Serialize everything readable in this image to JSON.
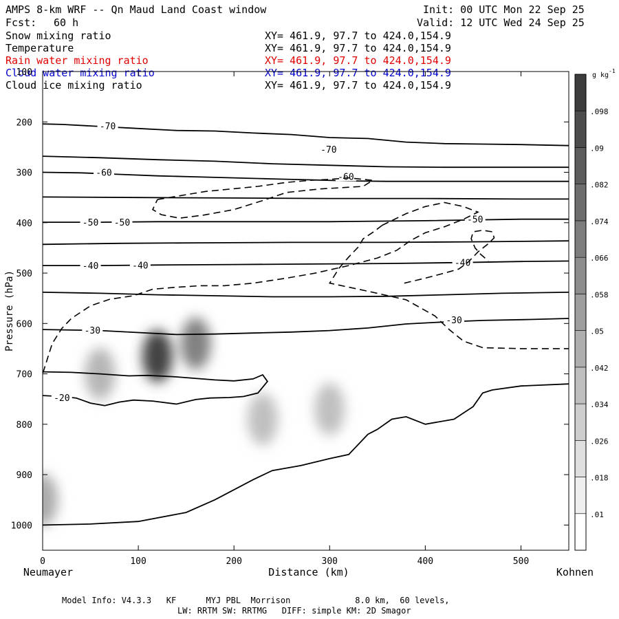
{
  "header": {
    "title": "AMPS 8-km WRF -- Qn Maud Land Coast window",
    "init": "Init: 00 UTC Mon 22 Sep 25",
    "fcst_label": "Fcst:",
    "fcst_value": "60 h",
    "valid": "Valid: 12 UTC Wed 24 Sep 25"
  },
  "fields": [
    {
      "name": "Snow mixing ratio",
      "xy": "XY= 461.9, 97.7 to 424.0,154.9",
      "color": "#000000"
    },
    {
      "name": "Temperature",
      "xy": "XY= 461.9, 97.7 to 424.0,154.9",
      "color": "#000000"
    },
    {
      "name": "Rain water mixing ratio",
      "xy": "XY= 461.9, 97.7 to 424.0,154.9",
      "color": "#e00000"
    },
    {
      "name": "Cloud water mixing ratio",
      "xy": "XY= 461.9, 97.7 to 424.0,154.9",
      "color": "#0000cc"
    },
    {
      "name": "Cloud ice mixing ratio",
      "xy": "XY= 461.9, 97.7 to 424.0,154.9",
      "color": "#000000"
    }
  ],
  "footer": {
    "line1": "Model Info: V4.3.3   KF      MYJ PBL  Morrison             8.0 km,  60 levels,",
    "line2": "LW: RRTM SW: RRTMG   DIFF: simple KM: 2D Smagor"
  },
  "chart_data": {
    "type": "cross-section",
    "xlabel": "Distance (km)",
    "ylabel": "Pressure (hPa)",
    "xlim": [
      0,
      550
    ],
    "ylim": [
      1050,
      100
    ],
    "x_ticks": [
      0,
      100,
      200,
      300,
      400,
      500
    ],
    "y_ticks": [
      100,
      200,
      300,
      400,
      500,
      600,
      700,
      800,
      900,
      1000
    ],
    "left_endpoint": "Neumayer",
    "right_endpoint": "Kohnen",
    "colorbar": {
      "unit": "g kg",
      "unit_exp": "-1",
      "levels": [
        0.01,
        0.018,
        0.026,
        0.034,
        0.042,
        0.05,
        0.058,
        0.066,
        0.074,
        0.082,
        0.09,
        0.098
      ],
      "tick_labels": [
        ".01",
        ".018",
        ".026",
        ".034",
        ".042",
        ".05",
        ".058",
        ".066",
        ".074",
        ".082",
        ".09",
        ".098"
      ]
    },
    "temperature_contours": [
      {
        "label": "-70",
        "label_positions": [
          [
            68,
            208
          ],
          [
            299,
            254
          ]
        ],
        "points": [
          [
            0,
            204
          ],
          [
            20,
            205
          ],
          [
            60,
            209
          ],
          [
            100,
            213
          ],
          [
            140,
            217
          ],
          [
            180,
            218
          ],
          [
            220,
            222
          ],
          [
            260,
            225
          ],
          [
            300,
            231
          ],
          [
            340,
            233
          ],
          [
            380,
            240
          ],
          [
            420,
            243
          ],
          [
            460,
            244
          ],
          [
            500,
            245
          ],
          [
            550,
            247
          ]
        ]
      },
      {
        "label": "",
        "label_positions": [],
        "points": [
          [
            0,
            268
          ],
          [
            60,
            271
          ],
          [
            120,
            275
          ],
          [
            180,
            278
          ],
          [
            240,
            283
          ],
          [
            300,
            286
          ],
          [
            360,
            289
          ],
          [
            420,
            290
          ],
          [
            480,
            290
          ],
          [
            550,
            290
          ]
        ]
      },
      {
        "label": "-60",
        "label_positions": [
          [
            64,
            300
          ],
          [
            317,
            308
          ]
        ],
        "points": [
          [
            0,
            300
          ],
          [
            40,
            301
          ],
          [
            80,
            304
          ],
          [
            120,
            307
          ],
          [
            160,
            309
          ],
          [
            200,
            311
          ],
          [
            240,
            313
          ],
          [
            280,
            315
          ],
          [
            320,
            317
          ],
          [
            360,
            318
          ],
          [
            400,
            318
          ],
          [
            450,
            318
          ],
          [
            500,
            318
          ],
          [
            550,
            318
          ]
        ]
      },
      {
        "label": "",
        "label_positions": [],
        "points": [
          [
            0,
            349
          ],
          [
            100,
            350
          ],
          [
            200,
            351
          ],
          [
            300,
            352
          ],
          [
            400,
            352
          ],
          [
            500,
            353
          ],
          [
            550,
            353
          ]
        ]
      },
      {
        "label": "-50",
        "label_positions": [
          [
            50,
            399
          ],
          [
            83,
            399
          ],
          [
            452,
            393
          ]
        ],
        "points": [
          [
            0,
            399
          ],
          [
            60,
            399
          ],
          [
            120,
            398
          ],
          [
            200,
            398
          ],
          [
            300,
            398
          ],
          [
            400,
            396
          ],
          [
            500,
            393
          ],
          [
            550,
            393
          ]
        ]
      },
      {
        "label": "",
        "label_positions": [],
        "points": [
          [
            0,
            443
          ],
          [
            80,
            441
          ],
          [
            160,
            440
          ],
          [
            260,
            439
          ],
          [
            360,
            439
          ],
          [
            450,
            438
          ],
          [
            550,
            436
          ]
        ]
      },
      {
        "label": "-40",
        "label_positions": [
          [
            50,
            485
          ],
          [
            102,
            484
          ],
          [
            439,
            479
          ]
        ],
        "points": [
          [
            0,
            485
          ],
          [
            60,
            485
          ],
          [
            120,
            484
          ],
          [
            200,
            483
          ],
          [
            280,
            482
          ],
          [
            360,
            481
          ],
          [
            440,
            479
          ],
          [
            500,
            477
          ],
          [
            550,
            476
          ]
        ]
      },
      {
        "label": "",
        "label_positions": [],
        "points": [
          [
            0,
            538
          ],
          [
            60,
            540
          ],
          [
            120,
            543
          ],
          [
            180,
            545
          ],
          [
            240,
            547
          ],
          [
            300,
            547
          ],
          [
            360,
            546
          ],
          [
            420,
            543
          ],
          [
            480,
            540
          ],
          [
            550,
            538
          ]
        ]
      },
      {
        "label": "-30",
        "label_positions": [
          [
            52,
            613
          ],
          [
            430,
            593
          ]
        ],
        "points": [
          [
            0,
            612
          ],
          [
            60,
            614
          ],
          [
            100,
            618
          ],
          [
            140,
            622
          ],
          [
            180,
            621
          ],
          [
            220,
            619
          ],
          [
            260,
            617
          ],
          [
            300,
            614
          ],
          [
            340,
            609
          ],
          [
            380,
            601
          ],
          [
            420,
            597
          ],
          [
            460,
            594
          ],
          [
            510,
            592
          ],
          [
            550,
            590
          ]
        ]
      },
      {
        "label": "-20",
        "label_positions": [
          [
            20,
            747
          ]
        ],
        "points": [
          [
            0,
            696
          ],
          [
            30,
            697
          ],
          [
            60,
            700
          ],
          [
            90,
            704
          ],
          [
            110,
            703
          ],
          [
            140,
            706
          ],
          [
            180,
            712
          ],
          [
            200,
            714
          ],
          [
            220,
            710
          ],
          [
            230,
            702
          ],
          [
            235,
            715
          ],
          [
            225,
            738
          ],
          [
            210,
            745
          ],
          [
            195,
            747
          ],
          [
            175,
            748
          ],
          [
            160,
            751
          ],
          [
            140,
            760
          ],
          [
            115,
            754
          ],
          [
            95,
            752
          ],
          [
            80,
            756
          ],
          [
            65,
            763
          ],
          [
            50,
            758
          ],
          [
            35,
            748
          ],
          [
            20,
            745
          ],
          [
            0,
            743
          ]
        ]
      },
      {
        "label": "",
        "label_positions": [],
        "points": [
          [
            0,
            1000
          ],
          [
            50,
            998
          ],
          [
            100,
            993
          ],
          [
            150,
            975
          ],
          [
            180,
            950
          ],
          [
            200,
            930
          ],
          [
            220,
            910
          ],
          [
            240,
            892
          ],
          [
            270,
            882
          ],
          [
            300,
            868
          ],
          [
            320,
            860
          ],
          [
            330,
            840
          ],
          [
            340,
            820
          ],
          [
            350,
            810
          ],
          [
            365,
            790
          ],
          [
            380,
            785
          ],
          [
            400,
            800
          ],
          [
            430,
            790
          ],
          [
            450,
            765
          ],
          [
            460,
            738
          ],
          [
            470,
            732
          ],
          [
            500,
            724
          ],
          [
            550,
            720
          ]
        ]
      }
    ],
    "cloud_ice_contours_dashed": [
      {
        "points": [
          [
            120,
            354
          ],
          [
            170,
            338
          ],
          [
            225,
            328
          ],
          [
            255,
            320
          ],
          [
            280,
            316
          ],
          [
            300,
            314
          ],
          [
            320,
            311
          ],
          [
            345,
            316
          ],
          [
            335,
            328
          ],
          [
            290,
            333
          ],
          [
            255,
            340
          ],
          [
            230,
            356
          ],
          [
            200,
            374
          ],
          [
            168,
            385
          ],
          [
            143,
            391
          ],
          [
            124,
            384
          ],
          [
            115,
            374
          ],
          [
            120,
            354
          ]
        ]
      },
      {
        "points": [
          [
            355,
            405
          ],
          [
            380,
            382
          ],
          [
            400,
            368
          ],
          [
            420,
            360
          ],
          [
            440,
            368
          ],
          [
            455,
            379
          ],
          [
            440,
            393
          ],
          [
            420,
            408
          ],
          [
            400,
            420
          ],
          [
            385,
            435
          ],
          [
            370,
            455
          ],
          [
            350,
            470
          ],
          [
            320,
            485
          ],
          [
            285,
            500
          ],
          [
            255,
            510
          ],
          [
            220,
            520
          ],
          [
            190,
            525
          ],
          [
            165,
            525
          ],
          [
            140,
            528
          ],
          [
            115,
            532
          ],
          [
            95,
            545
          ],
          [
            70,
            552
          ],
          [
            50,
            565
          ],
          [
            30,
            590
          ],
          [
            20,
            610
          ],
          [
            10,
            640
          ],
          [
            0,
            700
          ]
        ]
      },
      {
        "points": [
          [
            378,
            520
          ],
          [
            400,
            510
          ],
          [
            420,
            500
          ],
          [
            435,
            492
          ],
          [
            445,
            478
          ],
          [
            455,
            458
          ],
          [
            465,
            443
          ],
          [
            472,
            430
          ],
          [
            470,
            418
          ],
          [
            460,
            415
          ],
          [
            450,
            418
          ],
          [
            448,
            432
          ],
          [
            452,
            450
          ],
          [
            458,
            463
          ],
          [
            466,
            476
          ]
        ]
      },
      {
        "points": [
          [
            355,
            405
          ],
          [
            346,
            418
          ],
          [
            335,
            432
          ],
          [
            330,
            448
          ],
          [
            320,
            468
          ],
          [
            310,
            490
          ],
          [
            300,
            520
          ],
          [
            340,
            536
          ],
          [
            380,
            553
          ],
          [
            410,
            585
          ],
          [
            425,
            612
          ],
          [
            440,
            635
          ],
          [
            460,
            648
          ],
          [
            500,
            650
          ],
          [
            550,
            650
          ]
        ]
      }
    ],
    "snow_maxima": [
      {
        "x": 120,
        "p": 665,
        "value": 0.09
      },
      {
        "x": 160,
        "p": 640,
        "value": 0.06
      },
      {
        "x": 60,
        "p": 700,
        "value": 0.035
      },
      {
        "x": 0,
        "p": 950,
        "value": 0.04
      },
      {
        "x": 230,
        "p": 790,
        "value": 0.03
      },
      {
        "x": 300,
        "p": 770,
        "value": 0.03
      }
    ]
  }
}
